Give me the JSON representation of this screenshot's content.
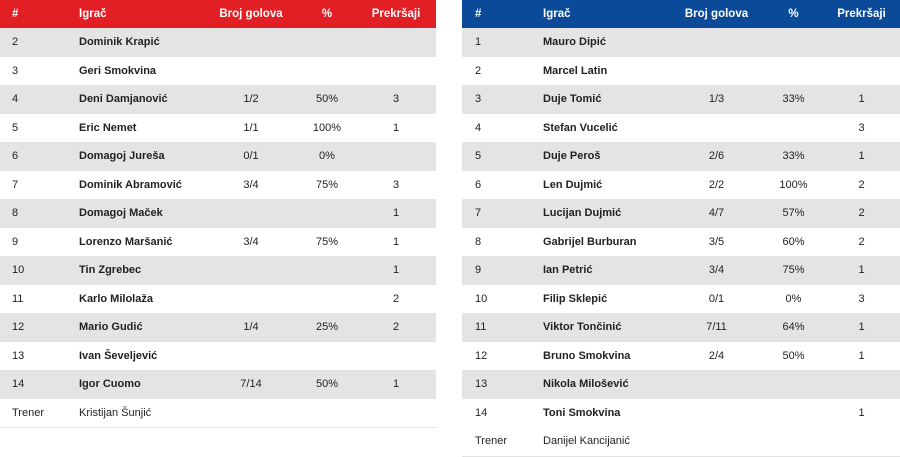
{
  "colors": {
    "home_header": "#e31f26",
    "away_header": "#0b4a98",
    "row_shade": "#e4e4e4"
  },
  "headers": {
    "num": "#",
    "player": "Igrač",
    "goals": "Broj golova",
    "pct": "%",
    "fouls": "Prekršaji"
  },
  "home": {
    "players": [
      {
        "num": "2",
        "name": "Dominik Krapić",
        "goals": "",
        "pct": "",
        "fouls": ""
      },
      {
        "num": "3",
        "name": "Geri Smokvina",
        "goals": "",
        "pct": "",
        "fouls": ""
      },
      {
        "num": "4",
        "name": "Deni Damjanović",
        "goals": "1/2",
        "pct": "50%",
        "fouls": "3"
      },
      {
        "num": "5",
        "name": "Eric Nemet",
        "goals": "1/1",
        "pct": "100%",
        "fouls": "1"
      },
      {
        "num": "6",
        "name": "Domagoj Jureša",
        "goals": "0/1",
        "pct": "0%",
        "fouls": ""
      },
      {
        "num": "7",
        "name": "Dominik Abramović",
        "goals": "3/4",
        "pct": "75%",
        "fouls": "3"
      },
      {
        "num": "8",
        "name": "Domagoj Maček",
        "goals": "",
        "pct": "",
        "fouls": "1"
      },
      {
        "num": "9",
        "name": "Lorenzo Maršanić",
        "goals": "3/4",
        "pct": "75%",
        "fouls": "1"
      },
      {
        "num": "10",
        "name": "Tin Zgrebec",
        "goals": "",
        "pct": "",
        "fouls": "1"
      },
      {
        "num": "11",
        "name": "Karlo Milolaža",
        "goals": "",
        "pct": "",
        "fouls": "2"
      },
      {
        "num": "12",
        "name": "Mario Gudić",
        "goals": "1/4",
        "pct": "25%",
        "fouls": "2"
      },
      {
        "num": "13",
        "name": "Ivan Ševeljević",
        "goals": "",
        "pct": "",
        "fouls": ""
      },
      {
        "num": "14",
        "name": "Igor Cuomo",
        "goals": "7/14",
        "pct": "50%",
        "fouls": "1"
      }
    ],
    "coach": {
      "label": "Trener",
      "name": "Kristijan Šunjić"
    }
  },
  "away": {
    "players": [
      {
        "num": "1",
        "name": "Mauro Dipić",
        "goals": "",
        "pct": "",
        "fouls": ""
      },
      {
        "num": "2",
        "name": "Marcel Latin",
        "goals": "",
        "pct": "",
        "fouls": ""
      },
      {
        "num": "3",
        "name": "Duje Tomić",
        "goals": "1/3",
        "pct": "33%",
        "fouls": "1"
      },
      {
        "num": "4",
        "name": "Stefan Vucelić",
        "goals": "",
        "pct": "",
        "fouls": "3"
      },
      {
        "num": "5",
        "name": "Duje Peroš",
        "goals": "2/6",
        "pct": "33%",
        "fouls": "1"
      },
      {
        "num": "6",
        "name": "Len Dujmić",
        "goals": "2/2",
        "pct": "100%",
        "fouls": "2"
      },
      {
        "num": "7",
        "name": "Lucijan Dujmić",
        "goals": "4/7",
        "pct": "57%",
        "fouls": "2"
      },
      {
        "num": "8",
        "name": "Gabrijel Burburan",
        "goals": "3/5",
        "pct": "60%",
        "fouls": "2"
      },
      {
        "num": "9",
        "name": "Ian Petrić",
        "goals": "3/4",
        "pct": "75%",
        "fouls": "1"
      },
      {
        "num": "10",
        "name": "Filip Sklepić",
        "goals": "0/1",
        "pct": "0%",
        "fouls": "3"
      },
      {
        "num": "11",
        "name": "Viktor Tončinić",
        "goals": "7/11",
        "pct": "64%",
        "fouls": "1"
      },
      {
        "num": "12",
        "name": "Bruno Smokvina",
        "goals": "2/4",
        "pct": "50%",
        "fouls": "1"
      },
      {
        "num": "13",
        "name": "Nikola Milošević",
        "goals": "",
        "pct": "",
        "fouls": ""
      },
      {
        "num": "14",
        "name": "Toni Smokvina",
        "goals": "",
        "pct": "",
        "fouls": "1"
      }
    ],
    "coach": {
      "label": "Trener",
      "name": "Danijel Kancijanić"
    }
  }
}
